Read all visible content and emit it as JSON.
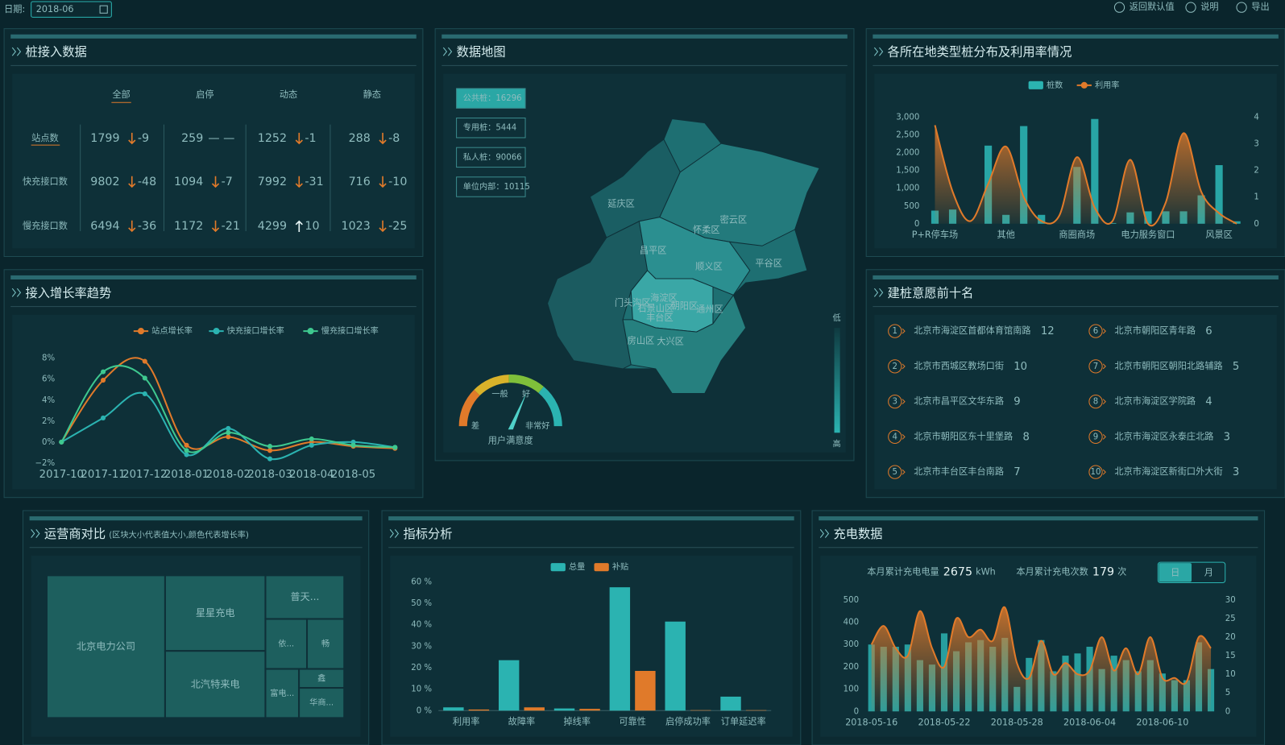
{
  "header": {
    "date_label": "日期:",
    "date": "2018-06",
    "actions": [
      "返回默认值",
      "说明",
      "导出"
    ]
  },
  "access": {
    "title": "桩接入数据",
    "columns": [
      "全部",
      "启停",
      "动态",
      "静态"
    ],
    "rows": [
      {
        "label": "站点数",
        "cells": [
          {
            "value": 1799,
            "change": -9
          },
          {
            "value": 259,
            "change": "— —"
          },
          {
            "value": 1252,
            "change": -1
          },
          {
            "value": 288,
            "change": -8
          }
        ]
      },
      {
        "label": "快充接口数",
        "cells": [
          {
            "value": 9802,
            "change": -48
          },
          {
            "value": 1094,
            "change": -7
          },
          {
            "value": 7992,
            "change": -31
          },
          {
            "value": 716,
            "change": -10
          }
        ]
      },
      {
        "label": "慢充接口数",
        "cells": [
          {
            "value": 6494,
            "change": -36
          },
          {
            "value": 1172,
            "change": -21
          },
          {
            "value": 4299,
            "change": 10
          },
          {
            "value": 1023,
            "change": -25
          }
        ]
      }
    ]
  },
  "map": {
    "title": "数据地图",
    "legend": [
      {
        "label": "公共桩：",
        "value": 16296
      },
      {
        "label": "专用桩：",
        "value": 5444
      },
      {
        "label": "私人桩：",
        "value": 90066
      },
      {
        "label": "单位内部：",
        "value": 10115
      }
    ],
    "districts": [
      "延庆区",
      "怀柔区",
      "密云区",
      "昌平区",
      "顺义区",
      "平谷区",
      "门头沟区",
      "海淀区",
      "朝阳区",
      "石景山区",
      "丰台区",
      "通州区",
      "房山区",
      "大兴区"
    ],
    "scale": [
      "低",
      "高"
    ],
    "gauge": {
      "title": "用户满意度",
      "levels": [
        "差",
        "一般",
        "好",
        "非常好"
      ]
    }
  },
  "ranking": {
    "title": "建桩意愿前十名",
    "items": [
      {
        "rank": 1,
        "name": "北京市海淀区首都体育馆南路",
        "count": 12
      },
      {
        "rank": 2,
        "name": "北京市西城区教场口街",
        "count": 10
      },
      {
        "rank": 3,
        "name": "北京市昌平区文华东路",
        "count": 9
      },
      {
        "rank": 4,
        "name": "北京市朝阳区东十里堡路",
        "count": 8
      },
      {
        "rank": 5,
        "name": "北京市丰台区丰台南路",
        "count": 7
      },
      {
        "rank": 6,
        "name": "北京市朝阳区青年路",
        "count": 6
      },
      {
        "rank": 7,
        "name": "北京市朝阳区朝阳北路辅路",
        "count": 5
      },
      {
        "rank": 8,
        "name": "北京市海淀区学院路",
        "count": 4
      },
      {
        "rank": 9,
        "name": "北京市海淀区永泰庄北路",
        "count": 3
      },
      {
        "rank": 10,
        "name": "北京市海淀区新街口外大街",
        "count": 3
      }
    ]
  },
  "charging_summary": {
    "energy": {
      "label": "本月累计充电电量",
      "value": 2675,
      "unit": "kWh"
    },
    "count": {
      "label": "本月累计充电次数",
      "value": 179,
      "unit": "次"
    },
    "toggle": [
      "日",
      "月"
    ]
  },
  "chart_data": [
    {
      "type": "bar",
      "title": "各所在地类型桩分布及利用率情况",
      "categories": [
        "P+R停车场",
        null,
        null,
        null,
        "其他",
        null,
        null,
        null,
        "商圈商场",
        null,
        null,
        null,
        "电力服务窗口",
        null,
        null,
        null,
        "风景区",
        null
      ],
      "series": [
        {
          "name": "桩数",
          "type": "bar",
          "color": "#2bb3b1",
          "values": [
            370,
            400,
            0,
            2200,
            250,
            2750,
            250,
            0,
            1600,
            2950,
            20,
            320,
            350,
            350,
            350,
            800,
            1650,
            70
          ]
        },
        {
          "name": "利用率",
          "type": "line",
          "axis": "y2",
          "color": "#e07a2a",
          "values": [
            3.7,
            1.2,
            0.1,
            1.5,
            2.9,
            1.0,
            0.1,
            0.3,
            2.5,
            0.6,
            0.1,
            2.4,
            0.0,
            0.8,
            3.4,
            1.2,
            0.4,
            0.0
          ]
        }
      ],
      "ylim": [
        0,
        3000
      ],
      "yticks": [
        0,
        500,
        {
          "value": 1000,
          "label": "1,000"
        },
        {
          "value": 1500,
          "label": "1,500"
        },
        {
          "value": 2000,
          "label": "2,000"
        },
        {
          "value": 2500,
          "label": "2,500"
        },
        {
          "value": 3000,
          "label": "3,000"
        }
      ],
      "y2lim": [
        0,
        4
      ],
      "y2ticks": [
        0,
        1,
        2,
        3,
        4
      ]
    },
    {
      "type": "line",
      "title": "接入增长率趋势",
      "categories": [
        "2017-10",
        "2017-11",
        "2017-12",
        "2018-01",
        "2018-02",
        "2018-03",
        "2018-04",
        "2018-05",
        null
      ],
      "series": [
        {
          "name": "站点增长率",
          "color": "#e07a2a",
          "values": [
            0,
            5.9,
            7.7,
            -0.3,
            0.5,
            -0.8,
            0,
            -0.4,
            -0.6
          ]
        },
        {
          "name": "快充接口增长率",
          "color": "#2bb3b1",
          "values": [
            0,
            2.3,
            4.6,
            -1.2,
            1.3,
            -1.6,
            -0.3,
            0,
            -0.5
          ]
        },
        {
          "name": "慢充接口增长率",
          "color": "#3ec88f",
          "values": [
            0,
            6.7,
            6.1,
            -0.8,
            0.9,
            -0.4,
            0.3,
            -0.3,
            -0.5
          ]
        }
      ],
      "ylim": [
        -2,
        8
      ],
      "yticks": [
        {
          "value": -2,
          "label": "−2%"
        },
        {
          "value": 0,
          "label": "0%"
        },
        {
          "value": 2,
          "label": "2%"
        },
        {
          "value": 4,
          "label": "4%"
        },
        {
          "value": 6,
          "label": "6%"
        },
        {
          "value": 8,
          "label": "8%"
        }
      ]
    },
    {
      "type": "treemap",
      "title": "运营商对比",
      "subtitle": "(区块大小代表值大小,颜色代表增长率)",
      "color": "#1d5f5e",
      "categories": [
        "北京电力公司",
        "星星充电",
        "北汽特来电",
        "普天...",
        "依...",
        "畅",
        "富电...",
        "鑫",
        "华商..."
      ],
      "values": [
        236,
        106,
        94,
        48,
        29,
        26,
        23,
        12,
        19
      ]
    },
    {
      "type": "bar",
      "title": "指标分析",
      "categories": [
        "利用率",
        "故障率",
        "掉线率",
        "可靠性",
        "启停成功率",
        "订单延迟率"
      ],
      "series": [
        {
          "name": "总量",
          "type": "bar",
          "color": "#2bb3b1",
          "values": [
            1.5,
            23.5,
            1,
            57.5,
            41.5,
            6.5
          ]
        },
        {
          "name": "补贴",
          "type": "bar",
          "color": "#e07a2a",
          "values": [
            0.5,
            1.5,
            0.8,
            18.5,
            0.2,
            0.2
          ]
        }
      ],
      "ylim": [
        0,
        60
      ],
      "yticks": [
        {
          "value": 0,
          "label": "0 %"
        },
        {
          "value": 10,
          "label": "10 %"
        },
        {
          "value": 20,
          "label": "20 %"
        },
        {
          "value": 30,
          "label": "30 %"
        },
        {
          "value": 40,
          "label": "40 %"
        },
        {
          "value": 50,
          "label": "50 %"
        },
        {
          "value": 60,
          "label": "60 %"
        }
      ]
    },
    {
      "type": "bar",
      "title": "充电数据",
      "categories": [
        "2018-05-16",
        null,
        null,
        null,
        null,
        null,
        "2018-05-22",
        null,
        null,
        null,
        null,
        null,
        "2018-05-28",
        null,
        null,
        null,
        null,
        null,
        "2018-06-04",
        null,
        null,
        null,
        null,
        null,
        "2018-06-10",
        null,
        null,
        null,
        null
      ],
      "series": [
        {
          "type": "bar",
          "color": "#2bb3b1",
          "values": [
            300,
            290,
            290,
            300,
            230,
            210,
            350,
            270,
            310,
            320,
            290,
            330,
            110,
            240,
            320,
            180,
            250,
            260,
            290,
            190,
            250,
            230,
            180,
            230,
            170,
            140,
            140,
            310,
            190
          ]
        },
        {
          "type": "line",
          "axis": "y2",
          "color": "#e07a2a",
          "values": [
            18,
            23,
            17,
            15,
            27,
            17,
            12,
            25,
            20,
            22,
            19,
            28,
            13,
            9,
            19,
            10,
            13,
            10,
            11,
            20,
            11,
            17,
            10,
            20,
            9,
            9,
            8,
            20,
            17
          ]
        }
      ],
      "ylim": [
        0,
        500
      ],
      "yticks": [
        0,
        100,
        200,
        300,
        400,
        500
      ],
      "y2lim": [
        0,
        30
      ],
      "y2ticks": [
        0,
        5,
        10,
        15,
        20,
        25,
        30
      ]
    }
  ]
}
